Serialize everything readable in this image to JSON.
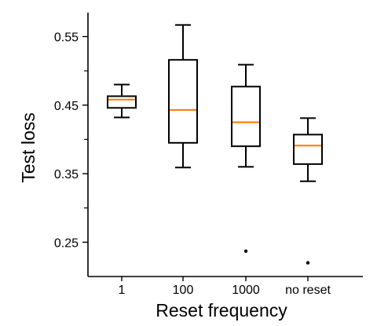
{
  "chart_data": {
    "type": "box",
    "title": "",
    "xlabel": "Reset frequency",
    "ylabel": "Test loss",
    "categories": [
      "1",
      "100",
      "1000",
      "no reset"
    ],
    "ylim": [
      0.2,
      0.585
    ],
    "yticks_labeled": [
      0.25,
      0.35,
      0.45,
      0.55
    ],
    "yticks_minor": [
      0.3,
      0.4,
      0.5
    ],
    "yticks_labels": [
      "0.25",
      "0.35",
      "0.45",
      "0.55"
    ],
    "grid": false,
    "legend": "none",
    "boxes": [
      {
        "category": "1",
        "whisker_low": 0.432,
        "q1": 0.446,
        "median": 0.458,
        "q3": 0.463,
        "whisker_high": 0.48,
        "outliers": []
      },
      {
        "category": "100",
        "whisker_low": 0.359,
        "q1": 0.395,
        "median": 0.443,
        "q3": 0.516,
        "whisker_high": 0.567,
        "outliers": []
      },
      {
        "category": "1000",
        "whisker_low": 0.36,
        "q1": 0.39,
        "median": 0.425,
        "q3": 0.477,
        "whisker_high": 0.509,
        "outliers": [
          0.237
        ]
      },
      {
        "category": "no reset",
        "whisker_low": 0.339,
        "q1": 0.364,
        "median": 0.391,
        "q3": 0.407,
        "whisker_high": 0.431,
        "outliers": [
          0.22
        ]
      }
    ],
    "colors": {
      "box": "#000000",
      "median": "#ff7f0e",
      "outlier": "#000000"
    }
  }
}
